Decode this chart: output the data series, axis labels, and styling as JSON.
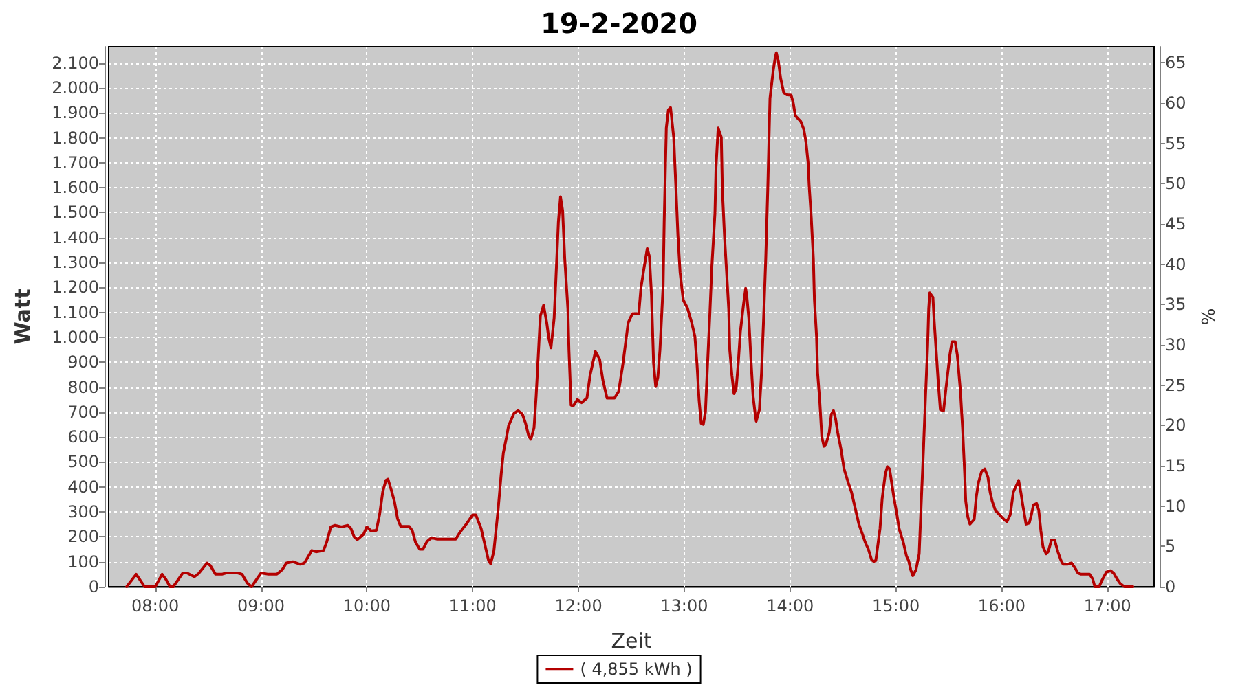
{
  "chart_data": {
    "type": "line",
    "title": "19-2-2020",
    "xlabel": "Zeit",
    "ylabel": "Watt",
    "y2label": "%",
    "x": [
      7.73,
      7.82,
      7.9,
      8.0,
      8.065,
      8.1,
      8.14,
      8.17,
      8.26,
      8.3,
      8.37,
      8.41,
      8.49,
      8.52,
      8.57,
      8.63,
      8.67,
      8.78,
      8.82,
      8.87,
      8.91,
      9.0,
      9.07,
      9.15,
      9.2,
      9.24,
      9.3,
      9.37,
      9.41,
      9.48,
      9.52,
      9.59,
      9.62,
      9.66,
      9.7,
      9.76,
      9.82,
      9.85,
      9.88,
      9.91,
      9.97,
      10.0,
      10.04,
      10.09,
      10.12,
      10.15,
      10.18,
      10.2,
      10.23,
      10.26,
      10.29,
      10.32,
      10.4,
      10.43,
      10.46,
      10.5,
      10.53,
      10.57,
      10.61,
      10.66,
      10.84,
      10.88,
      10.94,
      11.0,
      11.03,
      11.08,
      11.12,
      11.15,
      11.17,
      11.2,
      11.24,
      11.27,
      11.29,
      11.32,
      11.34,
      11.39,
      11.43,
      11.47,
      11.5,
      11.53,
      11.55,
      11.58,
      11.6,
      11.64,
      11.67,
      11.7,
      11.72,
      11.74,
      11.77,
      11.78,
      11.81,
      11.83,
      11.85,
      11.87,
      11.9,
      11.91,
      11.93,
      11.95,
      11.99,
      12.03,
      12.08,
      12.11,
      12.16,
      12.2,
      12.23,
      12.27,
      12.34,
      12.38,
      12.42,
      12.47,
      12.51,
      12.57,
      12.59,
      12.62,
      12.65,
      12.67,
      12.69,
      12.71,
      12.73,
      12.75,
      12.77,
      12.8,
      12.81,
      12.83,
      12.85,
      12.87,
      12.9,
      12.92,
      12.94,
      12.96,
      12.99,
      13.03,
      13.07,
      13.1,
      13.12,
      13.14,
      13.16,
      13.18,
      13.2,
      13.22,
      13.24,
      13.26,
      13.29,
      13.3,
      13.32,
      13.35,
      13.36,
      13.38,
      13.4,
      13.42,
      13.43,
      13.45,
      13.47,
      13.49,
      13.51,
      13.53,
      13.56,
      13.58,
      13.59,
      13.61,
      13.63,
      13.65,
      13.67,
      13.68,
      13.71,
      13.73,
      13.75,
      13.77,
      13.79,
      13.81,
      13.84,
      13.86,
      13.87,
      13.89,
      13.91,
      13.94,
      13.97,
      14.01,
      14.03,
      14.05,
      14.1,
      14.13,
      14.15,
      14.17,
      14.18,
      14.2,
      14.22,
      14.23,
      14.25,
      14.26,
      14.28,
      14.3,
      14.32,
      14.34,
      14.37,
      14.39,
      14.41,
      14.43,
      14.45,
      14.48,
      14.51,
      14.55,
      14.58,
      14.61,
      14.65,
      14.68,
      14.71,
      14.74,
      14.77,
      14.79,
      14.81,
      14.83,
      14.85,
      14.87,
      14.9,
      14.92,
      14.94,
      14.96,
      14.98,
      15.01,
      15.03,
      15.07,
      15.1,
      15.12,
      15.14,
      15.16,
      15.19,
      15.22,
      15.24,
      15.26,
      15.28,
      15.3,
      15.31,
      15.32,
      15.35,
      15.36,
      15.38,
      15.4,
      15.42,
      15.45,
      15.47,
      15.49,
      15.51,
      15.53,
      15.56,
      15.58,
      15.61,
      15.63,
      15.65,
      15.66,
      15.68,
      15.7,
      15.74,
      15.76,
      15.78,
      15.81,
      15.84,
      15.87,
      15.89,
      15.91,
      15.94,
      15.98,
      16.02,
      16.05,
      16.08,
      16.11,
      16.14,
      16.16,
      16.18,
      16.2,
      16.23,
      16.26,
      16.28,
      16.3,
      16.33,
      16.35,
      16.37,
      16.39,
      16.42,
      16.44,
      16.47,
      16.5,
      16.53,
      16.56,
      16.58,
      16.62,
      16.66,
      16.69,
      16.72,
      16.75,
      16.83,
      16.86,
      16.88,
      16.92,
      16.95,
      16.99,
      17.03,
      17.06,
      17.09,
      17.12,
      17.16,
      17.24
    ],
    "series": [
      {
        "name": "( 4,855 kWh )",
        "color": "#b40000",
        "values": [
          0,
          50,
          0,
          0,
          50,
          30,
          0,
          0,
          55,
          55,
          40,
          53,
          95,
          85,
          50,
          50,
          55,
          55,
          50,
          15,
          0,
          55,
          50,
          50,
          68,
          95,
          100,
          90,
          95,
          145,
          140,
          145,
          178,
          240,
          246,
          240,
          246,
          233,
          200,
          189,
          211,
          240,
          224,
          226,
          288,
          380,
          426,
          431,
          389,
          343,
          273,
          242,
          242,
          224,
          178,
          150,
          150,
          182,
          196,
          191,
          191,
          218,
          251,
          288,
          288,
          233,
          160,
          105,
          92,
          141,
          306,
          453,
          536,
          600,
          646,
          695,
          706,
          692,
          655,
          604,
          591,
          637,
          765,
          1086,
          1128,
          1059,
          994,
          958,
          1077,
          1169,
          1462,
          1563,
          1508,
          1316,
          1114,
          949,
          728,
          725,
          750,
          738,
          756,
          848,
          943,
          912,
          829,
          756,
          756,
          783,
          893,
          1059,
          1095,
          1095,
          1196,
          1279,
          1356,
          1325,
          1169,
          894,
          802,
          839,
          949,
          1206,
          1462,
          1839,
          1912,
          1921,
          1802,
          1609,
          1407,
          1261,
          1150,
          1117,
          1059,
          1004,
          894,
          747,
          655,
          651,
          701,
          894,
          1077,
          1279,
          1499,
          1683,
          1839,
          1802,
          1591,
          1407,
          1261,
          1114,
          949,
          848,
          774,
          793,
          894,
          1022,
          1132,
          1196,
          1169,
          1077,
          912,
          765,
          692,
          664,
          710,
          857,
          1077,
          1316,
          1609,
          1958,
          2068,
          2123,
          2141,
          2105,
          2040,
          1980,
          1972,
          1971,
          1939,
          1888,
          1866,
          1833,
          1783,
          1701,
          1609,
          1481,
          1316,
          1150,
          1004,
          857,
          747,
          600,
          563,
          572,
          618,
          692,
          706,
          673,
          618,
          554,
          472,
          417,
          380,
          325,
          251,
          215,
          178,
          150,
          108,
          101,
          105,
          169,
          233,
          352,
          453,
          481,
          472,
          417,
          361,
          288,
          233,
          178,
          123,
          105,
          68,
          44,
          68,
          132,
          343,
          545,
          765,
          967,
          1114,
          1178,
          1160,
          1077,
          949,
          820,
          710,
          705,
          783,
          857,
          930,
          982,
          982,
          930,
          783,
          637,
          453,
          343,
          279,
          251,
          270,
          361,
          417,
          462,
          472,
          439,
          380,
          343,
          306,
          288,
          270,
          261,
          288,
          380,
          407,
          426,
          380,
          325,
          251,
          255,
          288,
          328,
          334,
          306,
          224,
          160,
          132,
          141,
          187,
          187,
          141,
          105,
          90,
          90,
          95,
          77,
          55,
          50,
          50,
          31,
          0,
          0,
          28,
          59,
          64,
          53,
          31,
          13,
          0,
          0
        ]
      }
    ],
    "xlim": [
      7.56,
      17.44
    ],
    "xticks": [
      {
        "value": 8,
        "label": "08:00"
      },
      {
        "value": 9,
        "label": "09:00"
      },
      {
        "value": 10,
        "label": "10:00"
      },
      {
        "value": 11,
        "label": "11:00"
      },
      {
        "value": 12,
        "label": "12:00"
      },
      {
        "value": 13,
        "label": "13:00"
      },
      {
        "value": 14,
        "label": "14:00"
      },
      {
        "value": 15,
        "label": "15:00"
      },
      {
        "value": 16,
        "label": "16:00"
      },
      {
        "value": 17,
        "label": "17:00"
      }
    ],
    "ylim": [
      0,
      2165
    ],
    "yticks": [
      0,
      100,
      200,
      300,
      400,
      500,
      600,
      700,
      800,
      900,
      {
        "value": 1000,
        "label": "1.000"
      },
      {
        "value": 1100,
        "label": "1.100"
      },
      {
        "value": 1200,
        "label": "1.200"
      },
      {
        "value": 1300,
        "label": "1.300"
      },
      {
        "value": 1400,
        "label": "1.400"
      },
      {
        "value": 1500,
        "label": "1.500"
      },
      {
        "value": 1600,
        "label": "1.600"
      },
      {
        "value": 1700,
        "label": "1.700"
      },
      {
        "value": 1800,
        "label": "1.800"
      },
      {
        "value": 1900,
        "label": "1.900"
      },
      {
        "value": 2000,
        "label": "2.000"
      },
      {
        "value": 2100,
        "label": "2.100"
      }
    ],
    "y2lim": [
      0,
      67
    ],
    "y2ticks": [
      0,
      5,
      10,
      15,
      20,
      25,
      30,
      35,
      40,
      45,
      50,
      55,
      60,
      65
    ],
    "grid": true,
    "legend": "bottom"
  }
}
